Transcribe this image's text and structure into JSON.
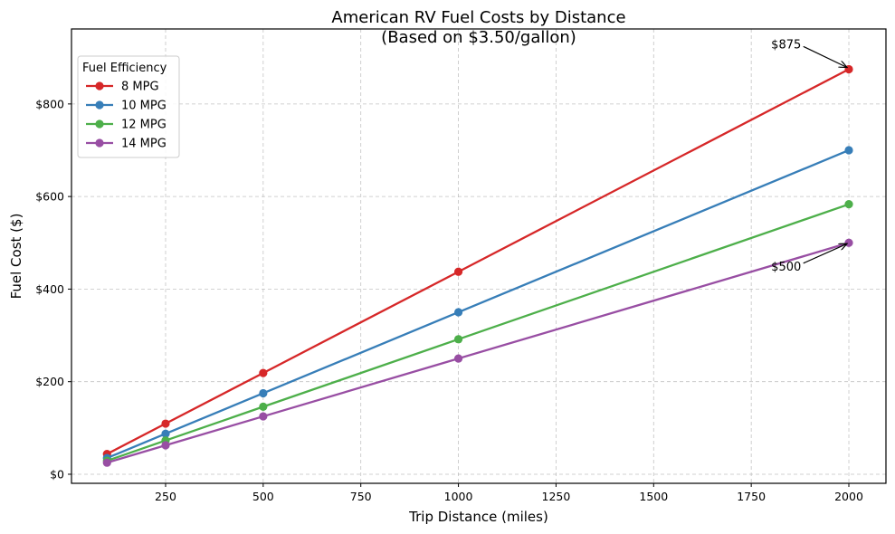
{
  "chart_data": {
    "type": "line",
    "title": "American RV Fuel Costs by Distance",
    "subtitle": "(Based on $3.50/gallon)",
    "xlabel": "Trip Distance (miles)",
    "ylabel": "Fuel Cost ($)",
    "x": [
      100,
      250,
      500,
      1000,
      2000
    ],
    "xlim": [
      9,
      2095
    ],
    "ylim": [
      -19.6,
      962
    ],
    "xticks": [
      250,
      500,
      750,
      1000,
      1250,
      1500,
      1750,
      2000
    ],
    "xtick_labels": [
      "250",
      "500",
      "750",
      "1000",
      "1250",
      "1500",
      "1750",
      "2000"
    ],
    "yticks": [
      0,
      200,
      400,
      600,
      800
    ],
    "ytick_labels": [
      "$0",
      "$200",
      "$400",
      "$600",
      "$800"
    ],
    "grid": true,
    "legend": {
      "title": "Fuel Efficiency",
      "placement": "top-left"
    },
    "series": [
      {
        "name": "8 MPG",
        "color": "#d62728",
        "values": [
          43.75,
          109.38,
          218.75,
          437.5,
          875
        ]
      },
      {
        "name": "10 MPG",
        "color": "#377eb8",
        "values": [
          35,
          87.5,
          175,
          350,
          700
        ]
      },
      {
        "name": "12 MPG",
        "color": "#4daf4a",
        "values": [
          29.17,
          72.92,
          145.83,
          291.67,
          583.33
        ]
      },
      {
        "name": "14 MPG",
        "color": "#984ea3",
        "values": [
          25,
          62.5,
          125,
          250,
          500
        ]
      }
    ],
    "annotations": [
      {
        "text": "$875",
        "x": 2000,
        "y": 875,
        "text_x": 1800,
        "text_y": 930
      },
      {
        "text": "$500",
        "x": 2000,
        "y": 500,
        "text_x": 1800,
        "text_y": 450
      }
    ]
  }
}
